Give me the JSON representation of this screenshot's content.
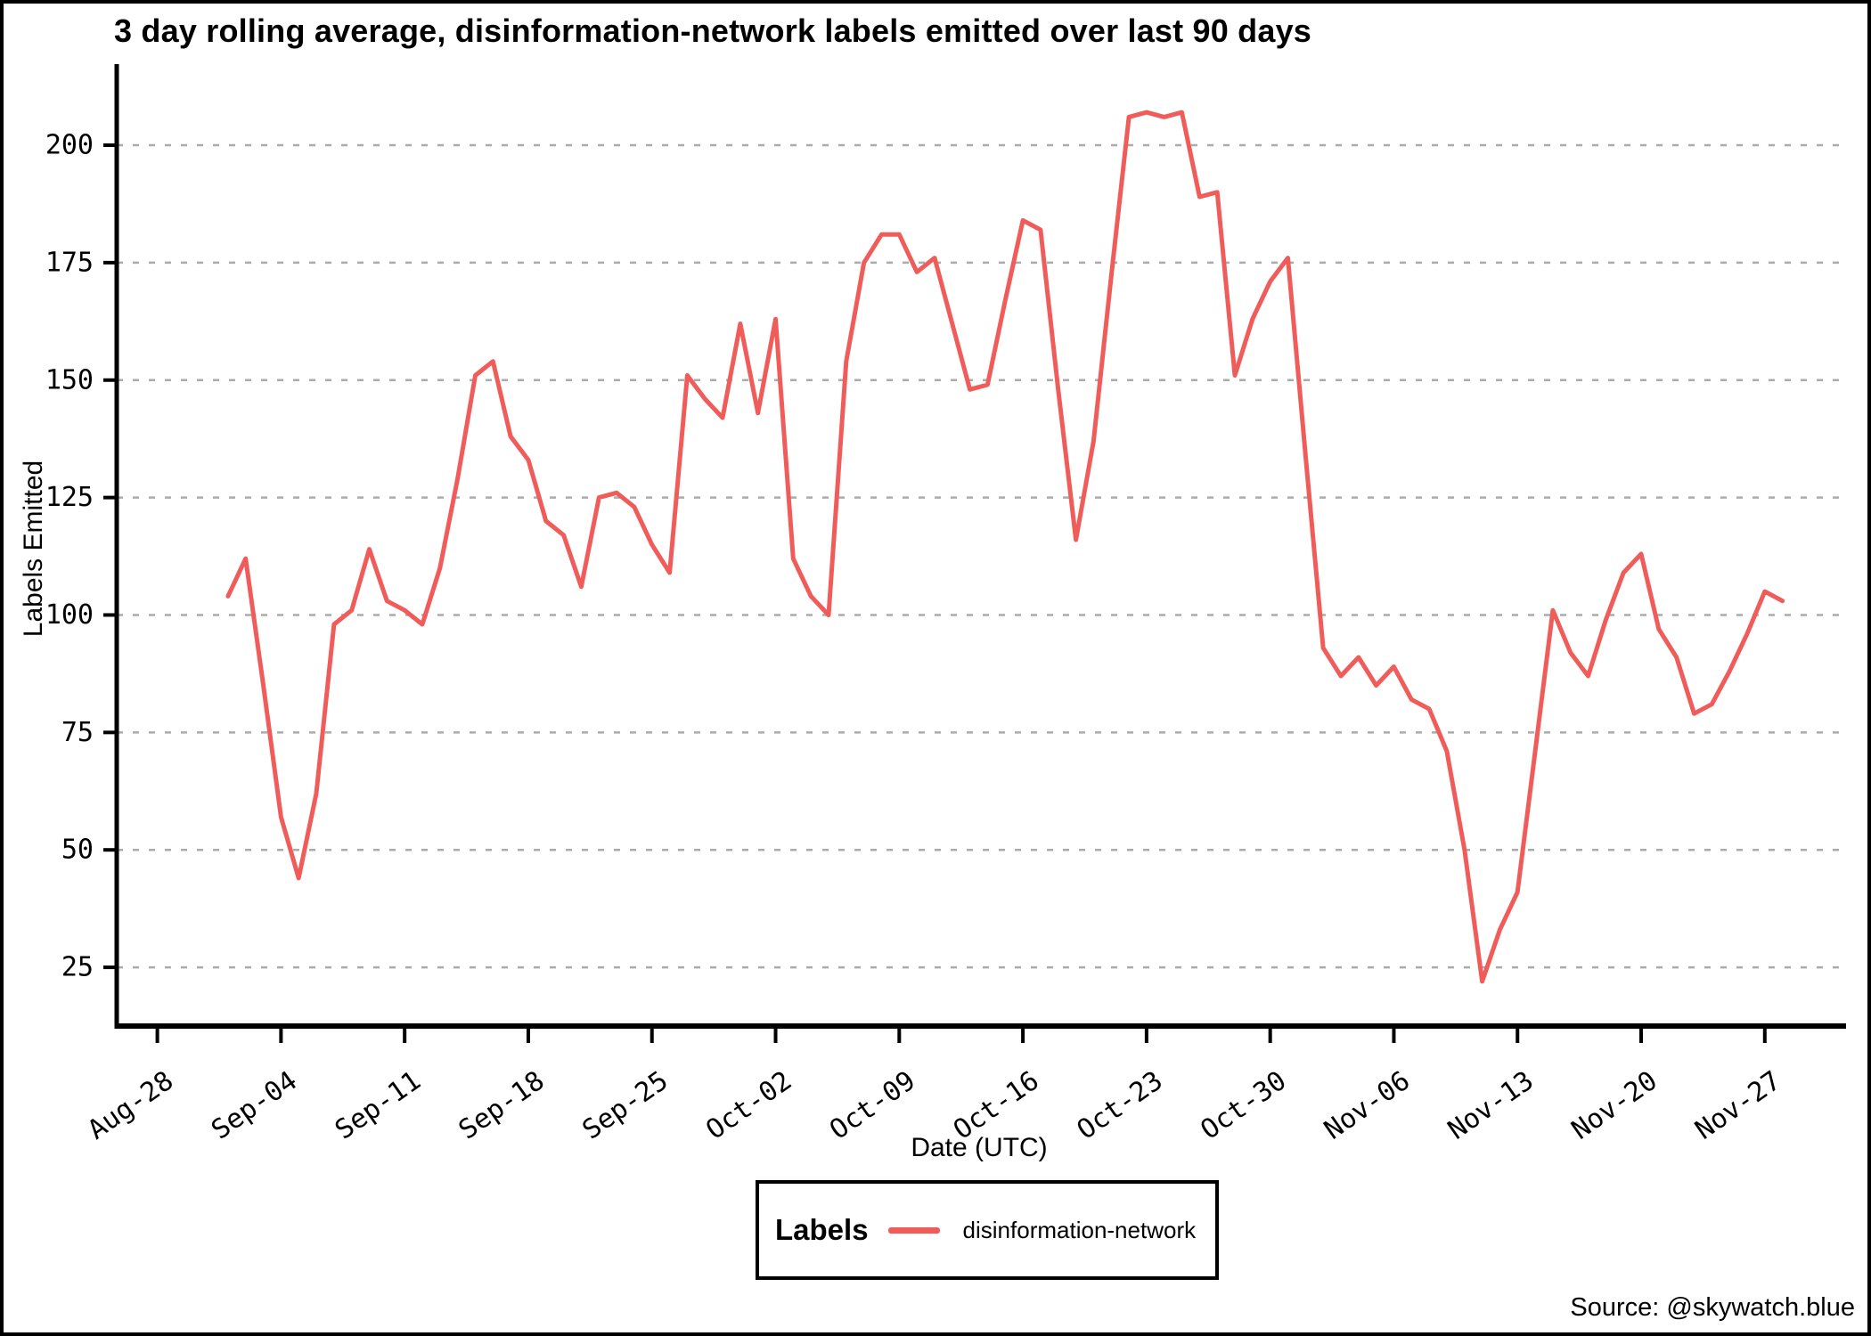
{
  "title": "3 day rolling average, disinformation-network labels emitted over last 90 days",
  "source": "Source: @skywatch.blue",
  "legend": {
    "title": "Labels",
    "series_label": "disinformation-network"
  },
  "chart_data": {
    "type": "line",
    "title": "3 day rolling average, disinformation-network labels emitted over last 90 days",
    "xlabel": "Date (UTC)",
    "ylabel": "Labels Emitted",
    "series_name": "disinformation-network",
    "line_color": "#F05C5A",
    "grid_color": "#ABABAB",
    "grid_style": "dashed horizontal only",
    "legend_position": "bottom-center",
    "x_tick_labels": [
      "Aug-28",
      "Sep-04",
      "Sep-11",
      "Sep-18",
      "Sep-25",
      "Oct-02",
      "Oct-09",
      "Oct-16",
      "Oct-23",
      "Oct-30",
      "Nov-06",
      "Nov-13",
      "Nov-20",
      "Nov-27"
    ],
    "y_ticks": [
      25,
      50,
      75,
      100,
      125,
      150,
      175,
      200
    ],
    "ylim": [
      12.5,
      216.5
    ],
    "xlim_days": [
      -2.3,
      95.6
    ],
    "points": [
      {
        "date": "Sep-01",
        "value": 104
      },
      {
        "date": "Sep-02",
        "value": 112
      },
      {
        "date": "Sep-03",
        "value": 85
      },
      {
        "date": "Sep-04",
        "value": 57
      },
      {
        "date": "Sep-05",
        "value": 44
      },
      {
        "date": "Sep-06",
        "value": 62
      },
      {
        "date": "Sep-07",
        "value": 98
      },
      {
        "date": "Sep-08",
        "value": 101
      },
      {
        "date": "Sep-09",
        "value": 114
      },
      {
        "date": "Sep-10",
        "value": 103
      },
      {
        "date": "Sep-11",
        "value": 101
      },
      {
        "date": "Sep-12",
        "value": 98
      },
      {
        "date": "Sep-13",
        "value": 110
      },
      {
        "date": "Sep-14",
        "value": 129
      },
      {
        "date": "Sep-15",
        "value": 151
      },
      {
        "date": "Sep-16",
        "value": 154
      },
      {
        "date": "Sep-17",
        "value": 138
      },
      {
        "date": "Sep-18",
        "value": 133
      },
      {
        "date": "Sep-19",
        "value": 120
      },
      {
        "date": "Sep-20",
        "value": 117
      },
      {
        "date": "Sep-21",
        "value": 106
      },
      {
        "date": "Sep-22",
        "value": 125
      },
      {
        "date": "Sep-23",
        "value": 126
      },
      {
        "date": "Sep-24",
        "value": 123
      },
      {
        "date": "Sep-25",
        "value": 115
      },
      {
        "date": "Sep-26",
        "value": 109
      },
      {
        "date": "Sep-27",
        "value": 151
      },
      {
        "date": "Sep-28",
        "value": 146
      },
      {
        "date": "Sep-29",
        "value": 142
      },
      {
        "date": "Sep-30",
        "value": 162
      },
      {
        "date": "Oct-01",
        "value": 143
      },
      {
        "date": "Oct-02",
        "value": 163
      },
      {
        "date": "Oct-03",
        "value": 112
      },
      {
        "date": "Oct-04",
        "value": 104
      },
      {
        "date": "Oct-05",
        "value": 100
      },
      {
        "date": "Oct-06",
        "value": 154
      },
      {
        "date": "Oct-07",
        "value": 175
      },
      {
        "date": "Oct-08",
        "value": 181
      },
      {
        "date": "Oct-09",
        "value": 181
      },
      {
        "date": "Oct-10",
        "value": 173
      },
      {
        "date": "Oct-11",
        "value": 176
      },
      {
        "date": "Oct-12",
        "value": 162
      },
      {
        "date": "Oct-13",
        "value": 148
      },
      {
        "date": "Oct-14",
        "value": 149
      },
      {
        "date": "Oct-15",
        "value": 167
      },
      {
        "date": "Oct-16",
        "value": 184
      },
      {
        "date": "Oct-17",
        "value": 182
      },
      {
        "date": "Oct-18",
        "value": 148
      },
      {
        "date": "Oct-19",
        "value": 116
      },
      {
        "date": "Oct-20",
        "value": 137
      },
      {
        "date": "Oct-21",
        "value": 172
      },
      {
        "date": "Oct-22",
        "value": 206
      },
      {
        "date": "Oct-23",
        "value": 207
      },
      {
        "date": "Oct-24",
        "value": 206
      },
      {
        "date": "Oct-25",
        "value": 207
      },
      {
        "date": "Oct-26",
        "value": 189
      },
      {
        "date": "Oct-27",
        "value": 190
      },
      {
        "date": "Oct-28",
        "value": 151
      },
      {
        "date": "Oct-29",
        "value": 163
      },
      {
        "date": "Oct-30",
        "value": 171
      },
      {
        "date": "Oct-31",
        "value": 176
      },
      {
        "date": "Nov-01",
        "value": 134
      },
      {
        "date": "Nov-02",
        "value": 93
      },
      {
        "date": "Nov-03",
        "value": 87
      },
      {
        "date": "Nov-04",
        "value": 91
      },
      {
        "date": "Nov-05",
        "value": 85
      },
      {
        "date": "Nov-06",
        "value": 89
      },
      {
        "date": "Nov-07",
        "value": 82
      },
      {
        "date": "Nov-08",
        "value": 80
      },
      {
        "date": "Nov-09",
        "value": 71
      },
      {
        "date": "Nov-10",
        "value": 50
      },
      {
        "date": "Nov-11",
        "value": 22
      },
      {
        "date": "Nov-12",
        "value": 33
      },
      {
        "date": "Nov-13",
        "value": 41
      },
      {
        "date": "Nov-14",
        "value": 71
      },
      {
        "date": "Nov-15",
        "value": 101
      },
      {
        "date": "Nov-16",
        "value": 92
      },
      {
        "date": "Nov-17",
        "value": 87
      },
      {
        "date": "Nov-18",
        "value": 99
      },
      {
        "date": "Nov-19",
        "value": 109
      },
      {
        "date": "Nov-20",
        "value": 113
      },
      {
        "date": "Nov-21",
        "value": 97
      },
      {
        "date": "Nov-22",
        "value": 91
      },
      {
        "date": "Nov-23",
        "value": 79
      },
      {
        "date": "Nov-24",
        "value": 81
      },
      {
        "date": "Nov-25",
        "value": 88
      },
      {
        "date": "Nov-26",
        "value": 96
      },
      {
        "date": "Nov-27",
        "value": 105
      },
      {
        "date": "Nov-28",
        "value": 103
      }
    ]
  }
}
